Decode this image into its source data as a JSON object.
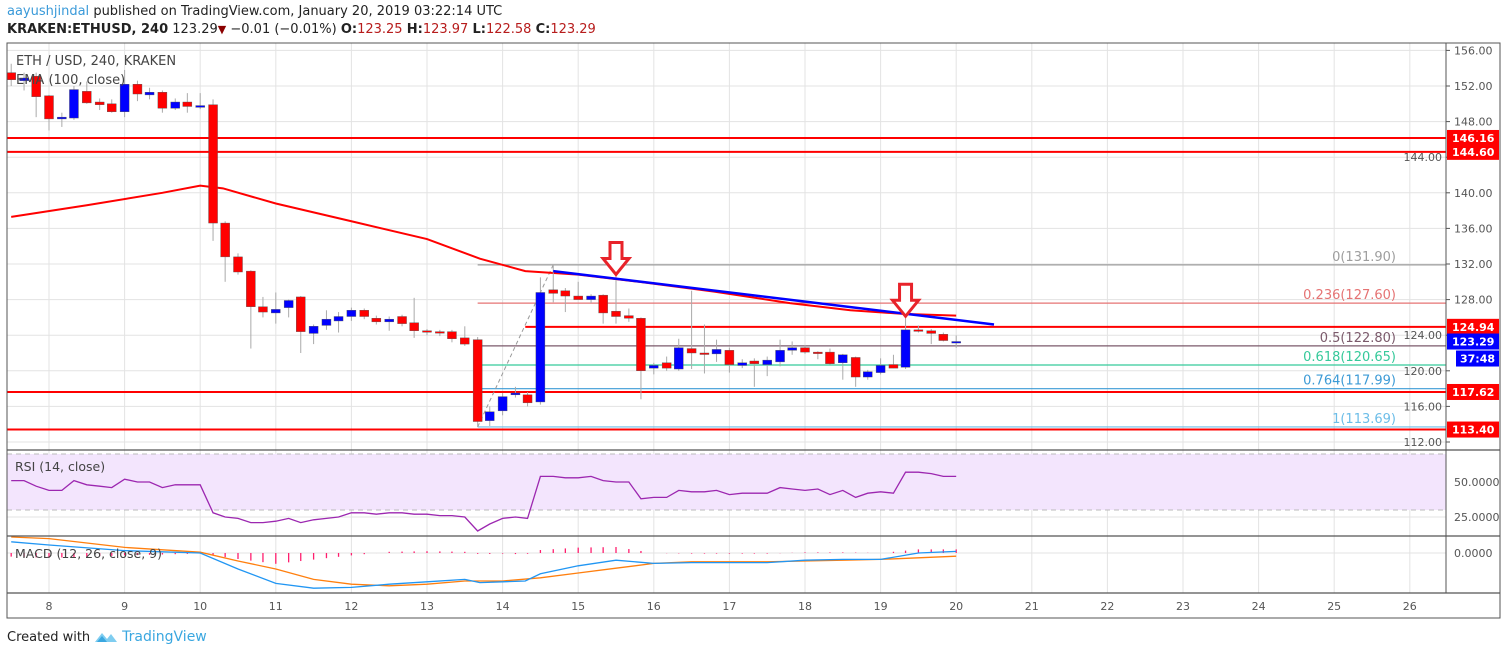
{
  "header": {
    "author": "aayushjindal",
    "published": "published on TradingView.com, January 20, 2019 03:22:14 UTC",
    "symbol": "KRAKEN:ETHUSD, 240",
    "last": "123.29",
    "change": "−0.01 (−0.01%)",
    "o_label": "O:",
    "o": "123.25",
    "h_label": "H:",
    "h": "123.97",
    "l_label": "L:",
    "l": "122.58",
    "c_label": "C:",
    "c": "123.29"
  },
  "legend": {
    "title": "ETH / USD, 240, KRAKEN",
    "ema": "EMA (100, close)",
    "rsi": "RSI (14, close)",
    "macd": "MACD (12, 26, close, 9)"
  },
  "footer": {
    "created_with": "Created with",
    "brand": "TradingView"
  },
  "colors": {
    "up": "#0000ff",
    "down": "#ff0000",
    "ema": "#ff0000",
    "trendline": "#0000ff",
    "support": "#ff0000",
    "rsi": "#9c27b0",
    "rsi_band": "#f3e5fd",
    "macd": "#2196f3",
    "signal": "#ff7f0e",
    "histogram": "#ff1e6e"
  },
  "chart_data": {
    "type": "candlestick",
    "x_ticks": [
      "8",
      "9",
      "10",
      "11",
      "12",
      "13",
      "14",
      "15",
      "16",
      "17",
      "18",
      "19",
      "20",
      "21",
      "22",
      "23",
      "24",
      "25",
      "26"
    ],
    "price_ticks": [
      "156.00",
      "152.00",
      "148.00",
      "144.00",
      "140.00",
      "136.00",
      "132.00",
      "128.00",
      "124.00",
      "120.00",
      "116.00",
      "112.00"
    ],
    "ylim": [
      111,
      157
    ],
    "candle_fields": [
      "day",
      "open",
      "high",
      "low",
      "close"
    ],
    "candles": [
      [
        7.5,
        153.5,
        154.5,
        152.0,
        152.7
      ],
      [
        7.67,
        152.6,
        153.5,
        151.5,
        152.9
      ],
      [
        7.83,
        153.1,
        153.5,
        148.5,
        150.8
      ],
      [
        8.0,
        150.9,
        151.0,
        147.0,
        148.3
      ],
      [
        8.17,
        148.3,
        149.0,
        147.4,
        148.5
      ],
      [
        8.33,
        148.4,
        152.0,
        148.2,
        151.6
      ],
      [
        8.5,
        151.4,
        152.5,
        150.0,
        150.1
      ],
      [
        8.67,
        150.2,
        150.6,
        149.3,
        149.9
      ],
      [
        8.83,
        150.0,
        150.5,
        149.0,
        149.1
      ],
      [
        9.0,
        149.1,
        153.8,
        148.5,
        152.2
      ],
      [
        9.17,
        152.2,
        152.6,
        150.3,
        151.1
      ],
      [
        9.33,
        151.0,
        151.8,
        150.5,
        151.3
      ],
      [
        9.5,
        151.3,
        151.5,
        149.0,
        149.5
      ],
      [
        9.67,
        149.5,
        150.6,
        149.3,
        150.2
      ],
      [
        9.83,
        150.2,
        151.2,
        149.0,
        149.7
      ],
      [
        10.0,
        149.6,
        151.2,
        149.4,
        149.8
      ],
      [
        10.17,
        149.9,
        150.5,
        134.6,
        136.6
      ],
      [
        10.33,
        136.6,
        136.8,
        130.0,
        132.8
      ],
      [
        10.5,
        132.8,
        133.2,
        130.8,
        131.1
      ],
      [
        10.67,
        131.2,
        131.3,
        122.5,
        127.2
      ],
      [
        10.83,
        127.2,
        128.3,
        126.0,
        126.6
      ],
      [
        11.0,
        126.5,
        128.8,
        125.3,
        126.9
      ],
      [
        11.17,
        127.1,
        128.0,
        126.0,
        127.9
      ],
      [
        11.33,
        128.3,
        128.4,
        122.0,
        124.4
      ],
      [
        11.5,
        124.2,
        125.2,
        123.0,
        125.0
      ],
      [
        11.67,
        125.1,
        126.8,
        124.6,
        125.8
      ],
      [
        11.83,
        125.6,
        126.6,
        124.3,
        126.1
      ],
      [
        12.0,
        126.1,
        127.1,
        125.6,
        126.8
      ],
      [
        12.17,
        126.8,
        127.0,
        125.8,
        126.1
      ],
      [
        12.33,
        125.9,
        126.2,
        125.2,
        125.5
      ],
      [
        12.5,
        125.5,
        126.1,
        124.5,
        125.8
      ],
      [
        12.67,
        126.1,
        126.3,
        125.0,
        125.3
      ],
      [
        12.83,
        125.4,
        128.2,
        123.7,
        124.5
      ],
      [
        13.0,
        124.5,
        124.7,
        124.0,
        124.4
      ],
      [
        13.17,
        124.4,
        124.6,
        123.9,
        124.3
      ],
      [
        13.33,
        124.4,
        124.6,
        123.2,
        123.6
      ],
      [
        13.5,
        123.7,
        125.0,
        122.8,
        123.0
      ],
      [
        13.67,
        123.5,
        123.8,
        113.7,
        114.3
      ],
      [
        13.83,
        114.4,
        116.0,
        113.8,
        115.4
      ],
      [
        14.0,
        115.5,
        117.5,
        115.0,
        117.1
      ],
      [
        14.17,
        117.3,
        118.2,
        117.0,
        117.5
      ],
      [
        14.33,
        117.3,
        117.6,
        116.0,
        116.4
      ],
      [
        14.5,
        116.5,
        130.5,
        116.2,
        128.8
      ],
      [
        14.67,
        129.1,
        131.9,
        127.7,
        128.7
      ],
      [
        14.83,
        129.0,
        129.3,
        126.6,
        128.4
      ],
      [
        15.0,
        128.4,
        130.0,
        128.0,
        128.0
      ],
      [
        15.17,
        128.0,
        128.6,
        127.6,
        128.4
      ],
      [
        15.33,
        128.5,
        128.6,
        125.3,
        126.5
      ],
      [
        15.5,
        126.7,
        130.7,
        125.3,
        126.1
      ],
      [
        15.67,
        126.2,
        127.0,
        125.5,
        125.9
      ],
      [
        15.83,
        125.9,
        126.0,
        116.8,
        120.0
      ],
      [
        16.0,
        120.3,
        120.9,
        119.6,
        120.6
      ],
      [
        16.17,
        120.9,
        121.6,
        120.0,
        120.3
      ],
      [
        16.33,
        120.2,
        123.6,
        120.0,
        122.6
      ],
      [
        16.5,
        122.5,
        129.0,
        120.2,
        122.0
      ],
      [
        16.67,
        122.0,
        125.2,
        119.7,
        121.9
      ],
      [
        16.83,
        121.9,
        123.5,
        121.0,
        122.4
      ],
      [
        17.0,
        122.3,
        122.6,
        119.8,
        120.7
      ],
      [
        17.17,
        120.6,
        121.3,
        120.3,
        120.9
      ],
      [
        17.33,
        121.1,
        121.4,
        118.2,
        120.8
      ],
      [
        17.5,
        120.7,
        121.6,
        119.4,
        121.2
      ],
      [
        17.67,
        121.0,
        123.5,
        120.5,
        122.3
      ],
      [
        17.83,
        122.3,
        123.3,
        121.8,
        122.6
      ],
      [
        18.0,
        122.6,
        122.9,
        121.9,
        122.1
      ],
      [
        18.17,
        122.1,
        122.2,
        121.3,
        122.0
      ],
      [
        18.33,
        122.1,
        122.5,
        120.7,
        120.8
      ],
      [
        18.5,
        120.9,
        121.9,
        119.0,
        121.8
      ],
      [
        18.67,
        121.5,
        121.6,
        118.2,
        119.3
      ],
      [
        18.83,
        119.3,
        120.1,
        119.0,
        119.9
      ],
      [
        19.0,
        119.8,
        121.4,
        119.6,
        120.6
      ],
      [
        19.17,
        120.7,
        121.8,
        120.3,
        120.3
      ],
      [
        19.33,
        120.4,
        125.9,
        120.2,
        124.6
      ],
      [
        19.5,
        124.6,
        125.1,
        124.3,
        124.5
      ],
      [
        19.67,
        124.5,
        124.7,
        123.0,
        124.2
      ],
      [
        19.83,
        124.1,
        124.3,
        123.3,
        123.4
      ],
      [
        20.0,
        123.25,
        123.97,
        122.58,
        123.29
      ]
    ],
    "ema100": [
      [
        7.5,
        137.3
      ],
      [
        8.5,
        138.6
      ],
      [
        9.5,
        140.0
      ],
      [
        10.0,
        140.8
      ],
      [
        10.3,
        140.5
      ],
      [
        11.0,
        138.8
      ],
      [
        12.0,
        136.8
      ],
      [
        13.0,
        134.8
      ],
      [
        13.7,
        132.6
      ],
      [
        14.3,
        131.2
      ],
      [
        15.0,
        130.8
      ],
      [
        15.8,
        130.0
      ],
      [
        16.8,
        128.9
      ],
      [
        17.8,
        127.6
      ],
      [
        18.6,
        126.8
      ],
      [
        19.3,
        126.4
      ],
      [
        20.0,
        126.2
      ]
    ],
    "horizontal_levels": [
      {
        "label": "146.16",
        "value": 146.16
      },
      {
        "label": "144.60",
        "value": 144.6
      },
      {
        "label": "124.94",
        "value": 124.94,
        "from_day": 14.3
      },
      {
        "label": "117.62",
        "value": 117.62
      },
      {
        "label": "113.40",
        "value": 113.4
      }
    ],
    "trendline": {
      "from": [
        14.67,
        131.2
      ],
      "to": [
        20.5,
        125.2
      ]
    },
    "fibonacci": {
      "swing_low": [
        13.67,
        113.69
      ],
      "swing_high": [
        14.67,
        131.9
      ],
      "levels": [
        {
          "label": "0(131.90)",
          "value": 131.9,
          "color": "#9e9e9e"
        },
        {
          "label": "0.236(127.60)",
          "value": 127.6,
          "color": "#e57373"
        },
        {
          "label": "0.5(122.80)",
          "value": 122.8,
          "color": "#7b5a6b"
        },
        {
          "label": "0.618(120.65)",
          "value": 120.65,
          "color": "#35c99a"
        },
        {
          "label": "0.764(117.99)",
          "value": 117.99,
          "color": "#3d9bd6"
        },
        {
          "label": "1(113.69)",
          "value": 113.69,
          "color": "#6cbde8"
        }
      ]
    },
    "resistance_arrows": [
      [
        15.5,
        130.6
      ],
      [
        19.33,
        125.9
      ]
    ],
    "last_price_badge": "123.29",
    "countdown_badge": "37:48",
    "rsi": {
      "ticks": [
        "50.0000",
        "25.0000"
      ],
      "bands": [
        30,
        70
      ],
      "values": [
        51,
        51,
        47,
        44,
        44,
        51,
        48,
        47,
        46,
        52,
        50,
        50,
        46,
        48,
        48,
        48,
        28,
        25,
        24,
        21,
        21,
        22,
        24,
        21,
        23,
        24,
        25,
        28,
        28,
        27,
        28,
        28,
        27,
        27,
        26,
        26,
        25,
        15,
        20,
        24,
        25,
        24,
        54,
        54,
        53,
        53,
        54,
        51,
        50,
        50,
        38,
        39,
        39,
        44,
        43,
        43,
        44,
        41,
        42,
        42,
        42,
        46,
        45,
        44,
        45,
        41,
        44,
        39,
        42,
        43,
        42,
        57,
        57,
        56,
        54,
        54
      ]
    },
    "macd": {
      "ticks": [
        "0.0000"
      ],
      "macd": [
        [
          7.5,
          1.4
        ],
        [
          8,
          1.0
        ],
        [
          9,
          0.3
        ],
        [
          10,
          0
        ],
        [
          10.5,
          -2
        ],
        [
          11,
          -3.8
        ],
        [
          11.5,
          -4.4
        ],
        [
          12,
          -4.3
        ],
        [
          12.5,
          -3.9
        ],
        [
          13,
          -3.6
        ],
        [
          13.5,
          -3.3
        ],
        [
          13.7,
          -3.7
        ],
        [
          14,
          -3.6
        ],
        [
          14.3,
          -3.5
        ],
        [
          14.5,
          -2.6
        ],
        [
          15,
          -1.6
        ],
        [
          15.5,
          -0.9
        ],
        [
          16,
          -1.3
        ],
        [
          16.5,
          -1.2
        ],
        [
          17,
          -1.2
        ],
        [
          17.5,
          -1.2
        ],
        [
          18,
          -0.9
        ],
        [
          18.5,
          -0.8
        ],
        [
          19,
          -0.8
        ],
        [
          19.5,
          0.0
        ],
        [
          20,
          0.2
        ]
      ],
      "signal": [
        [
          7.5,
          2.0
        ],
        [
          8,
          1.8
        ],
        [
          9,
          0.7
        ],
        [
          10,
          0.1
        ],
        [
          10.5,
          -1.0
        ],
        [
          11,
          -2.0
        ],
        [
          11.5,
          -3.3
        ],
        [
          12,
          -3.9
        ],
        [
          12.5,
          -4.1
        ],
        [
          13,
          -3.9
        ],
        [
          13.5,
          -3.5
        ],
        [
          14,
          -3.5
        ],
        [
          14.5,
          -3.1
        ],
        [
          15,
          -2.5
        ],
        [
          15.5,
          -1.9
        ],
        [
          16,
          -1.3
        ],
        [
          16.5,
          -1.1
        ],
        [
          17,
          -1.1
        ],
        [
          17.5,
          -1.1
        ],
        [
          18,
          -1.0
        ],
        [
          18.5,
          -0.9
        ],
        [
          19,
          -0.8
        ],
        [
          19.5,
          -0.6
        ],
        [
          20,
          -0.4
        ]
      ]
    }
  }
}
